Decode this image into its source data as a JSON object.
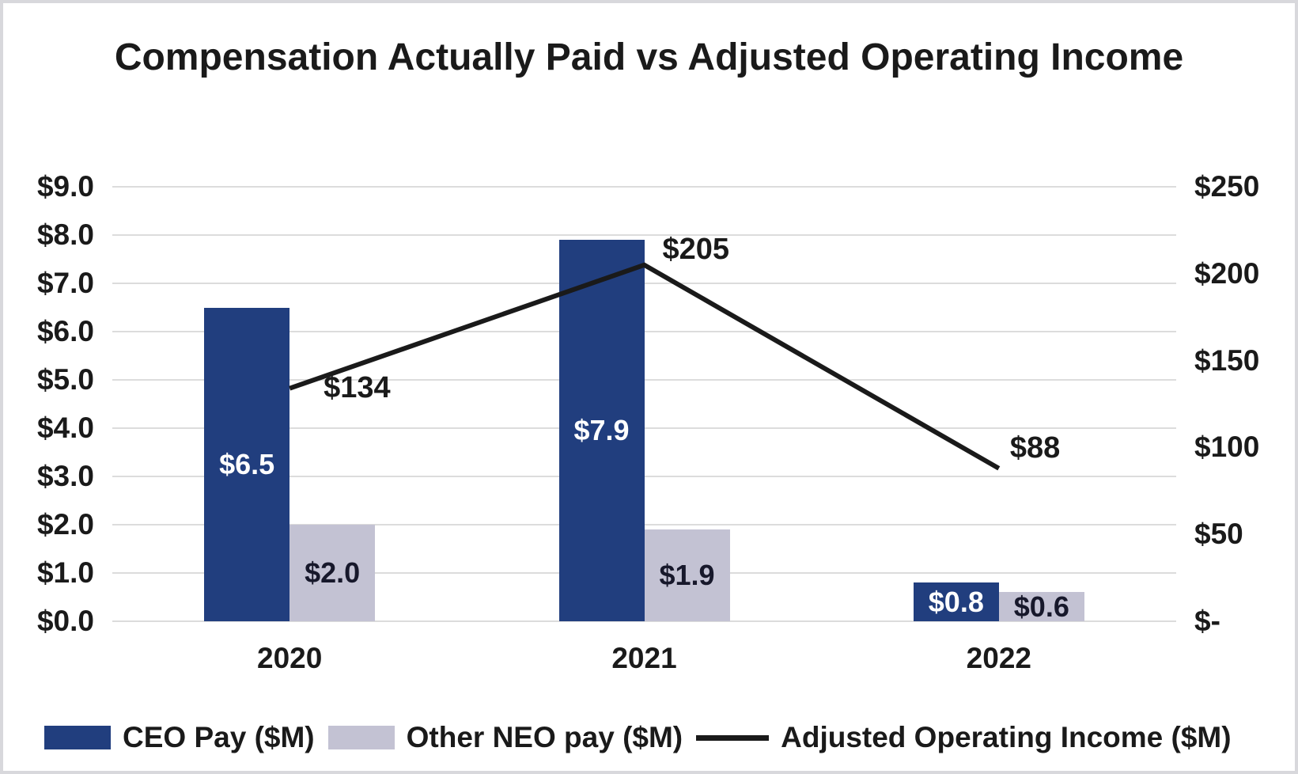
{
  "chart_data": {
    "type": "combo-bar-line",
    "title": "Compensation Actually Paid vs Adjusted Operating Income",
    "categories": [
      "2020",
      "2021",
      "2022"
    ],
    "series": [
      {
        "name": "CEO Pay ($M)",
        "chart_type": "bar",
        "axis": "left",
        "color": "#213E7E",
        "values": [
          6.5,
          7.9,
          0.8
        ],
        "data_labels": [
          "$6.5",
          "$7.9",
          "$0.8"
        ],
        "data_label_color": "#FFFFFF"
      },
      {
        "name": "Other NEO pay ($M)",
        "chart_type": "bar",
        "axis": "left",
        "color": "#C3C2D3",
        "values": [
          2.0,
          1.9,
          0.6
        ],
        "data_labels": [
          "$2.0",
          "$1.9",
          "$0.6"
        ],
        "data_label_color": "#17182B"
      },
      {
        "name": "Adjusted Operating Income ($M)",
        "chart_type": "line",
        "axis": "right",
        "color": "#1A1A1A",
        "values": [
          134,
          205,
          88
        ],
        "data_labels": [
          "$134",
          "$205",
          "$88"
        ],
        "data_label_color": "#1A1A1A"
      }
    ],
    "left_axis": {
      "range": [
        0,
        9
      ],
      "step": 1,
      "tick_labels": [
        "$0.0",
        "$1.0",
        "$2.0",
        "$3.0",
        "$4.0",
        "$5.0",
        "$6.0",
        "$7.0",
        "$8.0",
        "$9.0"
      ]
    },
    "right_axis": {
      "range": [
        0,
        250
      ],
      "step": 50,
      "tick_labels": [
        "$-",
        "$50",
        "$100",
        "$150",
        "$200",
        "$250"
      ]
    },
    "gridlines": "horizontal",
    "grid_color": "#DCDCDC",
    "background": "#FFFFFF",
    "legend_position": "bottom"
  }
}
